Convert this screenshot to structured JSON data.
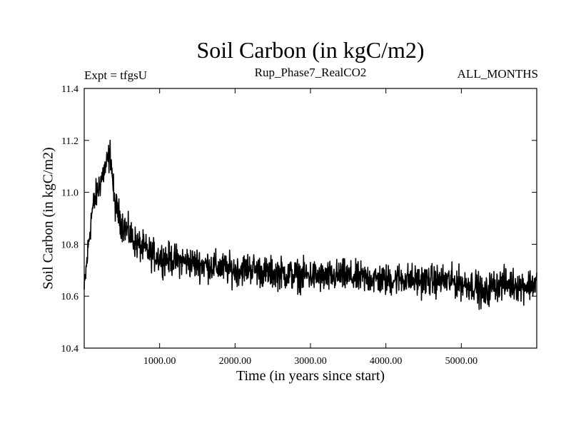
{
  "chart_data": {
    "type": "line",
    "title": "Soil Carbon (in kgC/m2)",
    "subtitle": "Rup_Phase7_RealCO2",
    "left_label": "Expt = tfgsU",
    "right_label": "ALL_MONTHS",
    "xlabel": "Time (in years since start)",
    "ylabel": "Soil Carbon (in kgC/m2)",
    "xlim": [
      0,
      6000
    ],
    "ylim": [
      10.4,
      11.4
    ],
    "x_ticks": [
      1000,
      2000,
      3000,
      4000,
      5000
    ],
    "x_tick_labels": [
      "1000.00",
      "2000.00",
      "3000.00",
      "4000.00",
      "5000.00"
    ],
    "y_ticks": [
      10.4,
      10.6,
      10.8,
      11.0,
      11.2,
      11.4
    ],
    "y_tick_labels": [
      "10.4",
      "10.6",
      "10.8",
      "11.0",
      "11.2",
      "11.4"
    ],
    "grid": false,
    "series": [
      {
        "name": "Soil Carbon",
        "color": "#000000",
        "x": [
          0,
          50,
          100,
          150,
          200,
          250,
          300,
          350,
          400,
          500,
          600,
          700,
          800,
          900,
          1000,
          1200,
          1400,
          1600,
          1800,
          2000,
          2200,
          2400,
          2600,
          2800,
          3000,
          3200,
          3400,
          3600,
          3800,
          4000,
          4200,
          4400,
          4600,
          4800,
          5000,
          5200,
          5300,
          5400,
          5600,
          5800,
          6000
        ],
        "values": [
          10.62,
          10.78,
          10.92,
          10.98,
          11.03,
          11.07,
          11.11,
          11.15,
          10.96,
          10.88,
          10.84,
          10.8,
          10.78,
          10.76,
          10.75,
          10.74,
          10.73,
          10.72,
          10.71,
          10.7,
          10.71,
          10.69,
          10.69,
          10.68,
          10.68,
          10.67,
          10.68,
          10.67,
          10.67,
          10.66,
          10.67,
          10.66,
          10.66,
          10.66,
          10.65,
          10.64,
          10.6,
          10.64,
          10.65,
          10.64,
          10.65
        ],
        "noise_amplitude": 0.06
      }
    ]
  }
}
